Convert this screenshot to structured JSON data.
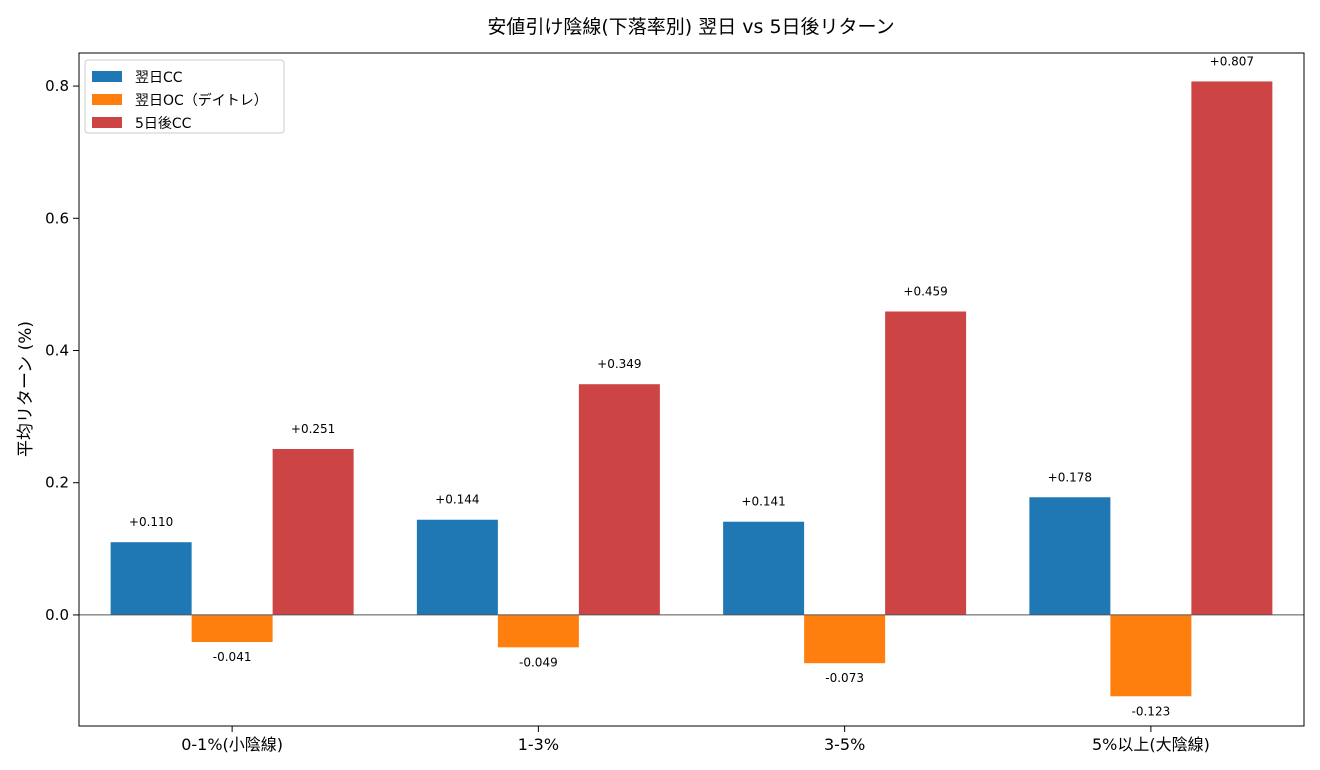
{
  "chart_data": {
    "type": "bar",
    "title": "安値引け陰線(下落率別) 翌日 vs 5日後リターン",
    "xlabel": "",
    "ylabel": "平均リターン (%)",
    "categories": [
      "0-1%(小陰線)",
      "1-3%",
      "3-5%",
      "5%以上(大陰線)"
    ],
    "series": [
      {
        "name": "翌日CC",
        "color": "#1f77b4",
        "values": [
          0.11,
          0.144,
          0.141,
          0.178
        ],
        "labels": [
          "+0.110",
          "+0.144",
          "+0.141",
          "+0.178"
        ]
      },
      {
        "name": "翌日OC（デイトレ）",
        "color": "#ff7f0e",
        "values": [
          -0.041,
          -0.049,
          -0.073,
          -0.123
        ],
        "labels": [
          "-0.041",
          "-0.049",
          "-0.073",
          "-0.123"
        ]
      },
      {
        "name": "5日後CC",
        "color": "#cc4444",
        "values": [
          0.251,
          0.349,
          0.459,
          0.807
        ],
        "labels": [
          "+0.251",
          "+0.349",
          "+0.459",
          "+0.807"
        ]
      }
    ],
    "ylim": [
      -0.168,
      0.85
    ],
    "yticks": [
      0.0,
      0.2,
      0.4,
      0.6,
      0.8
    ],
    "ytick_labels": [
      "0.0",
      "0.2",
      "0.4",
      "0.6",
      "0.8"
    ],
    "grid": false,
    "legend": "top-left",
    "zero_line": true
  }
}
